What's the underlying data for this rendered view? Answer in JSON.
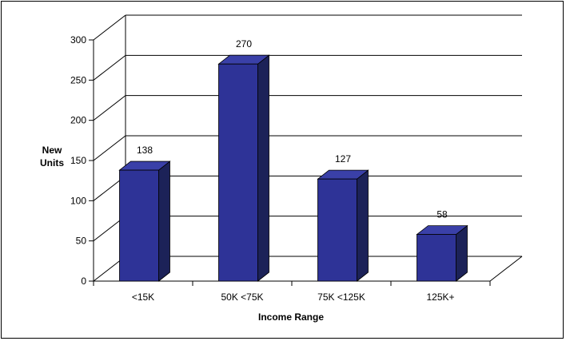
{
  "chart_data": {
    "type": "bar",
    "style": "3d-column",
    "categories": [
      "<15K",
      "50K <75K",
      "75K <125K",
      "125K+"
    ],
    "values": [
      138,
      270,
      127,
      58
    ],
    "data_labels": [
      "138",
      "270",
      "127",
      "58"
    ],
    "ylim": [
      0,
      300
    ],
    "yticks": [
      0,
      50,
      100,
      150,
      200,
      250,
      300
    ],
    "xlabel": "Income Range",
    "ylabel_lines": [
      "New",
      "Units"
    ],
    "grid": true,
    "legend": "none",
    "colors": {
      "bar_front": "#2e3397",
      "bar_side": "#1c2258",
      "bar_top": "#3a40a8",
      "grid": "#000000"
    }
  }
}
